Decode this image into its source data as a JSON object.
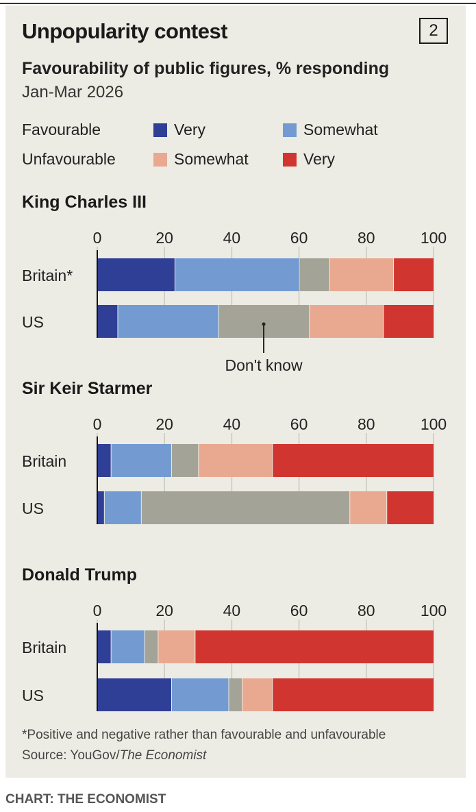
{
  "header": {
    "title": "Unpopularity contest",
    "chart_number": "2",
    "subtitle": "Favourability of public figures, % responding",
    "date": "Jan-Mar 2026"
  },
  "legend": {
    "favourable": "Favourable",
    "unfavourable": "Unfavourable",
    "fav_very": "Very",
    "fav_somewhat": "Somewhat",
    "unfav_somewhat": "Somewhat",
    "unfav_very": "Very"
  },
  "colors": {
    "fav_very": "#2f3f96",
    "fav_somewhat": "#739bd1",
    "dont_know": "#a3a398",
    "unfav_somewhat": "#e9a991",
    "unfav_very": "#d1352f"
  },
  "chart_data": [
    {
      "type": "bar",
      "stacked": true,
      "orientation": "horizontal",
      "title": "King Charles III",
      "categories": [
        "Britain*",
        "US"
      ],
      "xlim": [
        0,
        100
      ],
      "ticks": [
        "0",
        "20",
        "40",
        "60",
        "80",
        "100"
      ],
      "grid": true,
      "annotation": "Don't know",
      "series": [
        {
          "name": "Favourable: Very",
          "values": [
            23,
            6
          ]
        },
        {
          "name": "Favourable: Somewhat",
          "values": [
            37,
            30
          ]
        },
        {
          "name": "Don't know",
          "values": [
            9,
            27
          ]
        },
        {
          "name": "Unfavourable: Somewhat",
          "values": [
            19,
            22
          ]
        },
        {
          "name": "Unfavourable: Very",
          "values": [
            12,
            15
          ]
        }
      ]
    },
    {
      "type": "bar",
      "stacked": true,
      "orientation": "horizontal",
      "title": "Sir Keir Starmer",
      "categories": [
        "Britain",
        "US"
      ],
      "xlim": [
        0,
        100
      ],
      "ticks": [
        "0",
        "20",
        "40",
        "60",
        "80",
        "100"
      ],
      "grid": true,
      "series": [
        {
          "name": "Favourable: Very",
          "values": [
            4,
            2
          ]
        },
        {
          "name": "Favourable: Somewhat",
          "values": [
            18,
            11
          ]
        },
        {
          "name": "Don't know",
          "values": [
            8,
            62
          ]
        },
        {
          "name": "Unfavourable: Somewhat",
          "values": [
            22,
            11
          ]
        },
        {
          "name": "Unfavourable: Very",
          "values": [
            48,
            14
          ]
        }
      ]
    },
    {
      "type": "bar",
      "stacked": true,
      "orientation": "horizontal",
      "title": "Donald Trump",
      "categories": [
        "Britain",
        "US"
      ],
      "xlim": [
        0,
        100
      ],
      "ticks": [
        "0",
        "20",
        "40",
        "60",
        "80",
        "100"
      ],
      "grid": true,
      "series": [
        {
          "name": "Favourable: Very",
          "values": [
            4,
            22
          ]
        },
        {
          "name": "Favourable: Somewhat",
          "values": [
            10,
            17
          ]
        },
        {
          "name": "Don't know",
          "values": [
            4,
            4
          ]
        },
        {
          "name": "Unfavourable: Somewhat",
          "values": [
            11,
            9
          ]
        },
        {
          "name": "Unfavourable: Very",
          "values": [
            71,
            48
          ]
        }
      ]
    }
  ],
  "footnote": "*Positive and negative rather than favourable and unfavourable",
  "source_prefix": "Source: YouGov/",
  "source_pub": "The Economist",
  "credit": "CHART: THE ECONOMIST"
}
